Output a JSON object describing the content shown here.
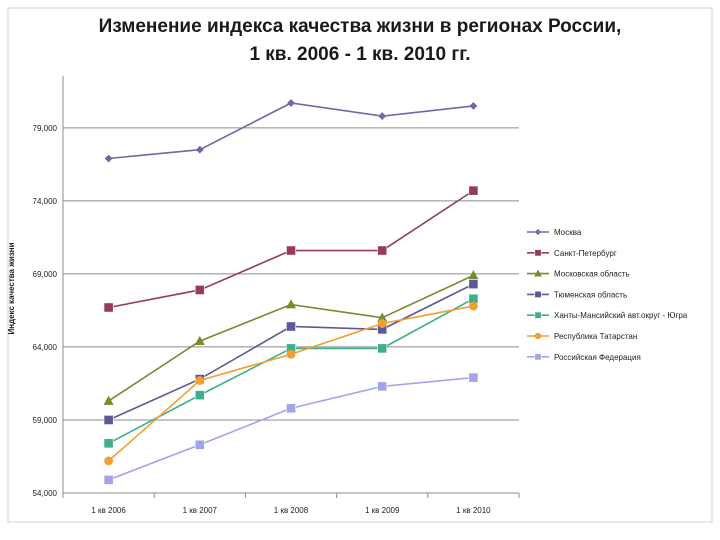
{
  "chart_data": {
    "type": "line",
    "title": "Изменение индекса качества жизни в регионах России,",
    "subtitle": "1 кв. 2006 - 1 кв. 2010 гг.",
    "ylabel": "Индекс качества жизни",
    "xlabel": "",
    "categories": [
      "1 кв 2006",
      "1 кв 2007",
      "1 кв 2008",
      "1 кв 2009",
      "1 кв 2010"
    ],
    "ylim": [
      54000,
      82000
    ],
    "yticks": [
      54000,
      59000,
      64000,
      69000,
      74000,
      79000
    ],
    "ytick_labels": [
      "54,000",
      "59,000",
      "64,000",
      "69,000",
      "74,000",
      "79,000"
    ],
    "grid": "horizontal",
    "legend": "right",
    "series": [
      {
        "name": "Москва",
        "values": [
          76900,
          77500,
          80700,
          79800,
          80500
        ],
        "color": "#6b6ba8",
        "marker": "diamond"
      },
      {
        "name": "Санкт-Петербург",
        "values": [
          66700,
          67900,
          70600,
          70600,
          74700
        ],
        "color": "#963c55",
        "marker": "square"
      },
      {
        "name": "Московская область",
        "values": [
          60300,
          64400,
          66900,
          66000,
          68900
        ],
        "color": "#7a8a2e",
        "marker": "triangle"
      },
      {
        "name": "Тюменская область",
        "values": [
          59000,
          61800,
          65400,
          65200,
          68300
        ],
        "color": "#5a5a96",
        "marker": "square"
      },
      {
        "name": "Ханты-Мансийский авт.округ - Югра",
        "values": [
          57400,
          60700,
          63900,
          63900,
          67300
        ],
        "color": "#3fae8c",
        "marker": "square"
      },
      {
        "name": "Республика Татарстан",
        "values": [
          56200,
          61700,
          63500,
          65600,
          66800
        ],
        "color": "#f0a030",
        "marker": "circle"
      },
      {
        "name": "Российская Федерация",
        "values": [
          54900,
          57300,
          59800,
          61300,
          61900
        ],
        "color": "#a3a3ea",
        "marker": "square"
      }
    ]
  }
}
